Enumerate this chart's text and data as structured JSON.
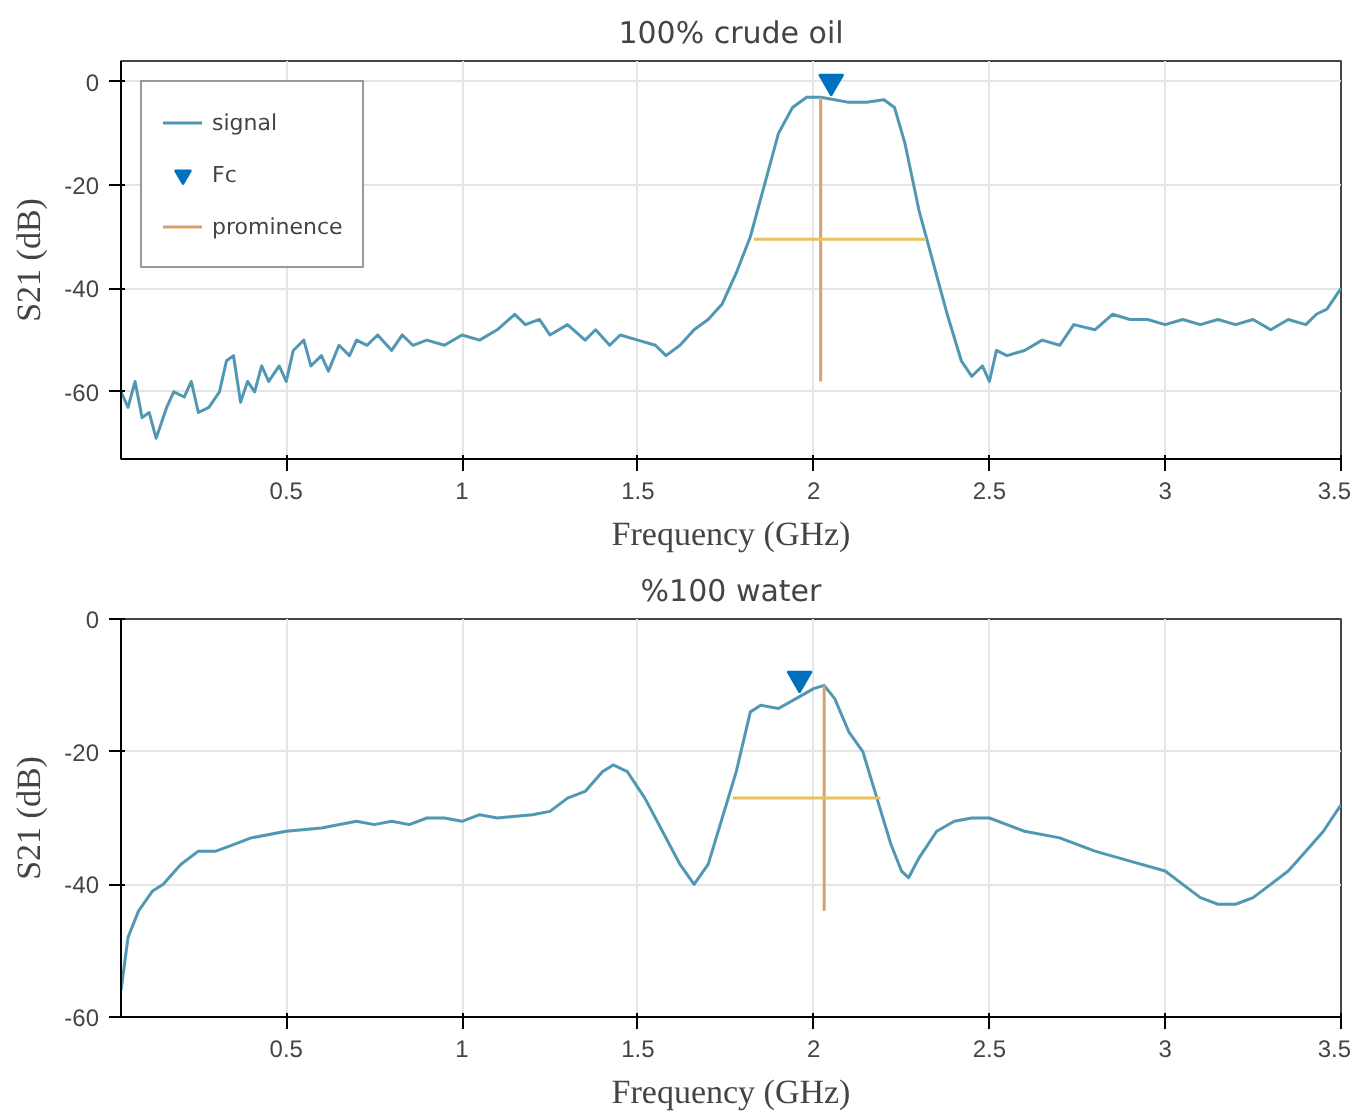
{
  "chart_data": [
    {
      "type": "line",
      "title": "100% crude oil",
      "xlabel": "Frequency (GHz)",
      "ylabel": "S21 (dB)",
      "xlim": [
        0.03,
        3.5
      ],
      "ylim": [
        -73,
        4
      ],
      "xticks": [
        0.5,
        1,
        1.5,
        2,
        2.5,
        3,
        3.5
      ],
      "yticks": [
        -60,
        -40,
        -20,
        0
      ],
      "grid": true,
      "legend": "top left",
      "series": [
        {
          "name": "signal",
          "color": "#4f97b3",
          "x": [
            0.03,
            0.05,
            0.07,
            0.09,
            0.11,
            0.13,
            0.16,
            0.18,
            0.21,
            0.23,
            0.25,
            0.28,
            0.31,
            0.33,
            0.35,
            0.37,
            0.39,
            0.41,
            0.43,
            0.45,
            0.48,
            0.5,
            0.52,
            0.55,
            0.57,
            0.6,
            0.62,
            0.65,
            0.68,
            0.7,
            0.73,
            0.76,
            0.8,
            0.83,
            0.86,
            0.9,
            0.95,
            1.0,
            1.05,
            1.1,
            1.15,
            1.18,
            1.22,
            1.25,
            1.3,
            1.35,
            1.38,
            1.42,
            1.45,
            1.5,
            1.55,
            1.58,
            1.62,
            1.66,
            1.7,
            1.74,
            1.78,
            1.82,
            1.86,
            1.9,
            1.94,
            1.98,
            2.02,
            2.06,
            2.1,
            2.15,
            2.2,
            2.23,
            2.26,
            2.3,
            2.34,
            2.38,
            2.42,
            2.45,
            2.48,
            2.5,
            2.52,
            2.55,
            2.6,
            2.65,
            2.7,
            2.74,
            2.8,
            2.85,
            2.9,
            2.95,
            3.0,
            3.05,
            3.1,
            3.15,
            3.2,
            3.25,
            3.3,
            3.35,
            3.4,
            3.43,
            3.46,
            3.5
          ],
          "values": [
            -60,
            -63,
            -58,
            -65,
            -64,
            -69,
            -63,
            -60,
            -61,
            -58,
            -64,
            -63,
            -60,
            -54,
            -53,
            -62,
            -58,
            -60,
            -55,
            -58,
            -55,
            -58,
            -52,
            -50,
            -55,
            -53,
            -56,
            -51,
            -53,
            -50,
            -51,
            -49,
            -52,
            -49,
            -51,
            -50,
            -51,
            -49,
            -50,
            -48,
            -45,
            -47,
            -46,
            -49,
            -47,
            -50,
            -48,
            -51,
            -49,
            -50,
            -51,
            -53,
            -51,
            -48,
            -46,
            -43,
            -37,
            -30,
            -20,
            -10,
            -5,
            -3,
            -3,
            -3.5,
            -4,
            -4,
            -3.5,
            -5,
            -12,
            -25,
            -35,
            -45,
            -54,
            -57,
            -55,
            -58,
            -52,
            -53,
            -52,
            -50,
            -51,
            -47,
            -48,
            -45,
            -46,
            -46,
            -47,
            -46,
            -47,
            -46,
            -47,
            -46,
            -48,
            -46,
            -47,
            -45,
            -44,
            -40
          ]
        },
        {
          "name": "Fc",
          "type": "scatter",
          "marker": "triangle",
          "color": "#0072bd",
          "x": [
            2.05
          ],
          "values": [
            0
          ]
        },
        {
          "name": "prominence",
          "color": "#d9a06a",
          "x": [
            2.02,
            2.02
          ],
          "values": [
            -3,
            -58
          ]
        },
        {
          "color": "#e8c060",
          "x": [
            1.83,
            2.32
          ],
          "values": [
            -30.5,
            -30.5
          ]
        }
      ]
    },
    {
      "type": "line",
      "title": "%100 water",
      "xlabel": "Frequency (GHz)",
      "ylabel": "S21 (dB)",
      "xlim": [
        0.03,
        3.5
      ],
      "ylim": [
        -60,
        0
      ],
      "xticks": [
        0.5,
        1,
        1.5,
        2,
        2.5,
        3,
        3.5
      ],
      "yticks": [
        -60,
        -40,
        -20,
        0
      ],
      "grid": true,
      "series": [
        {
          "color": "#4f97b3",
          "x": [
            0.03,
            0.05,
            0.08,
            0.12,
            0.15,
            0.2,
            0.25,
            0.3,
            0.35,
            0.4,
            0.5,
            0.6,
            0.7,
            0.75,
            0.8,
            0.85,
            0.9,
            0.95,
            1.0,
            1.05,
            1.1,
            1.2,
            1.25,
            1.3,
            1.35,
            1.4,
            1.43,
            1.47,
            1.52,
            1.57,
            1.62,
            1.66,
            1.7,
            1.74,
            1.78,
            1.82,
            1.85,
            1.9,
            1.95,
            2.0,
            2.03,
            2.06,
            2.1,
            2.14,
            2.18,
            2.22,
            2.25,
            2.27,
            2.3,
            2.35,
            2.4,
            2.45,
            2.5,
            2.55,
            2.6,
            2.7,
            2.8,
            2.9,
            3.0,
            3.05,
            3.1,
            3.15,
            3.2,
            3.25,
            3.3,
            3.35,
            3.4,
            3.45,
            3.5
          ],
          "values": [
            -56,
            -48,
            -44,
            -41,
            -40,
            -37,
            -35,
            -35,
            -34,
            -33,
            -32,
            -31.5,
            -30.5,
            -31,
            -30.5,
            -31,
            -30,
            -30,
            -30.5,
            -29.5,
            -30,
            -29.5,
            -29,
            -27,
            -26,
            -23,
            -22,
            -23,
            -27,
            -32,
            -37,
            -40,
            -37,
            -30,
            -23,
            -14,
            -13,
            -13.5,
            -12,
            -10.5,
            -10,
            -12,
            -17,
            -20,
            -27,
            -34,
            -38,
            -39,
            -36,
            -32,
            -30.5,
            -30,
            -30,
            -31,
            -32,
            -33,
            -35,
            -36.5,
            -38,
            -40,
            -42,
            -43,
            -43,
            -42,
            -40,
            -38,
            -35,
            -32,
            -28
          ]
        },
        {
          "type": "scatter",
          "marker": "triangle",
          "color": "#0072bd",
          "x": [
            1.96
          ],
          "values": [
            -9
          ]
        },
        {
          "color": "#d9a06a",
          "x": [
            2.03,
            2.03
          ],
          "values": [
            -10,
            -44
          ]
        },
        {
          "color": "#e8c060",
          "x": [
            1.77,
            2.19
          ],
          "values": [
            -27,
            -27
          ]
        }
      ]
    }
  ]
}
